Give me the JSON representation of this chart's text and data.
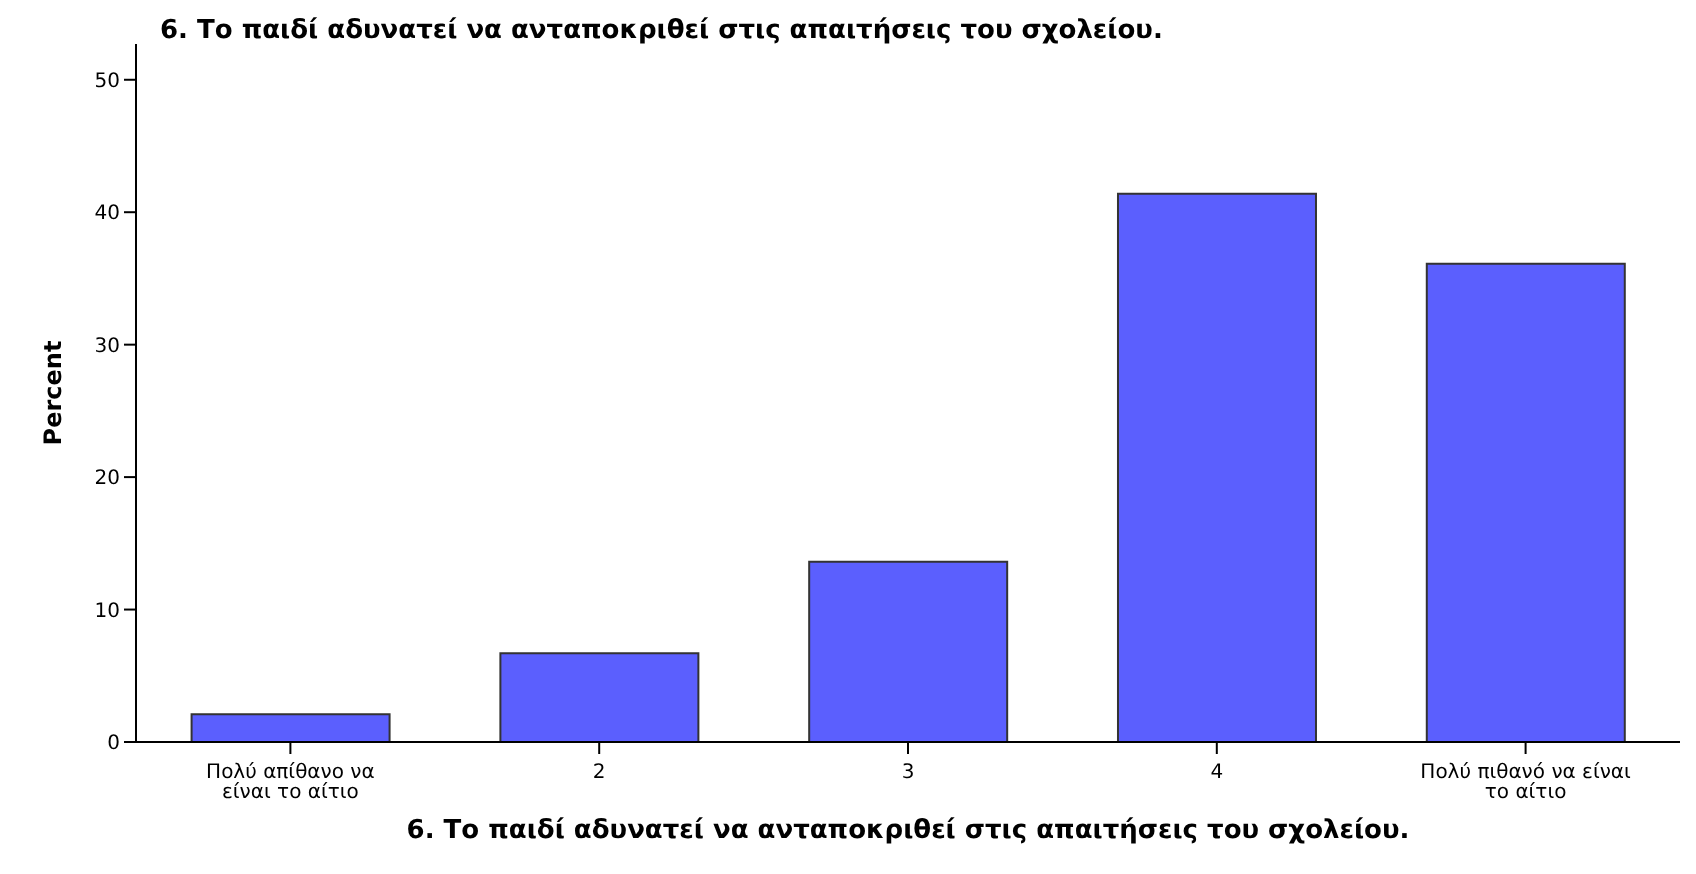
{
  "chart_data": {
    "type": "bar",
    "title": "6. Το παιδί αδυνατεί να ανταποκριθεί στις απαιτήσεις του σχολείου.",
    "xlabel": "6. Το παιδί αδυνατεί να ανταποκριθεί στις απαιτήσεις του σχολείου.",
    "ylabel": "Percent",
    "categories": [
      "Πολύ απίθανο να είναι το αίτιο",
      "2",
      "3",
      "4",
      "Πολύ πιθανό να είναι το αίτιο"
    ],
    "values": [
      2.1,
      6.7,
      13.6,
      41.4,
      36.1
    ],
    "color": "#5b5ffe",
    "ylim": [
      0,
      52.7
    ],
    "yticks": [
      0,
      10,
      20,
      30,
      40,
      50
    ],
    "grid": false
  }
}
